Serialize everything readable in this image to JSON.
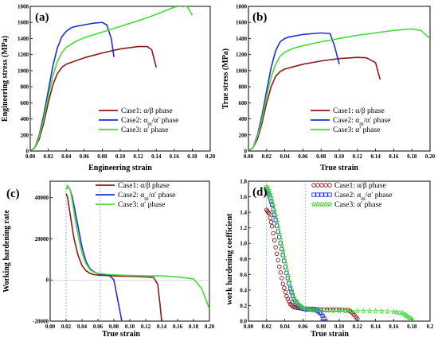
{
  "colors": {
    "case1": "#8B1A1A",
    "case2": "#1f2fd6",
    "case3": "#46d93a"
  },
  "legend_labels": [
    "Case1:  α/β  phase",
    "Case2:  αm/α′ phase",
    "Case3:    α′  phase"
  ],
  "chart_data": [
    {
      "panel": "(a)",
      "type": "line",
      "xlabel": "Engineering strain",
      "ylabel": "Engineering stress (MPa)",
      "xlim": [
        0,
        0.2
      ],
      "ylim": [
        0,
        1800
      ],
      "xticks": [
        "0.00",
        "0.02",
        "0.04",
        "0.06",
        "0.08",
        "0.10",
        "0.12",
        "0.14",
        "0.16",
        "0.18",
        "0.20"
      ],
      "yticks": [
        "0",
        "200",
        "400",
        "600",
        "800",
        "1000",
        "1200",
        "1400",
        "1600",
        "1800"
      ],
      "legend": "bottom-right",
      "series": [
        {
          "name": "Case1:  α/β  phase",
          "x": [
            0,
            0.005,
            0.01,
            0.015,
            0.02,
            0.025,
            0.03,
            0.035,
            0.04,
            0.05,
            0.06,
            0.08,
            0.1,
            0.12,
            0.13,
            0.135,
            0.14
          ],
          "y": [
            0,
            40,
            150,
            350,
            600,
            820,
            960,
            1040,
            1080,
            1120,
            1160,
            1220,
            1270,
            1300,
            1300,
            1260,
            1040
          ]
        },
        {
          "name": "Case2:  αm/α′ phase",
          "x": [
            0,
            0.005,
            0.01,
            0.015,
            0.02,
            0.025,
            0.03,
            0.035,
            0.04,
            0.045,
            0.05,
            0.06,
            0.07,
            0.08,
            0.085,
            0.09,
            0.093
          ],
          "y": [
            0,
            40,
            200,
            450,
            750,
            1050,
            1280,
            1420,
            1490,
            1530,
            1550,
            1570,
            1590,
            1600,
            1570,
            1400,
            1170
          ]
        },
        {
          "name": "Case3:    α′  phase",
          "x": [
            0,
            0.005,
            0.01,
            0.015,
            0.02,
            0.025,
            0.03,
            0.035,
            0.04,
            0.05,
            0.06,
            0.08,
            0.1,
            0.12,
            0.14,
            0.16,
            0.17,
            0.175,
            0.18
          ],
          "y": [
            0,
            40,
            180,
            400,
            680,
            930,
            1110,
            1220,
            1290,
            1360,
            1410,
            1480,
            1550,
            1620,
            1700,
            1790,
            1810,
            1790,
            1690
          ]
        }
      ]
    },
    {
      "panel": "(b)",
      "type": "line",
      "xlabel": "True strain",
      "ylabel": "True stress (MPa)",
      "xlim": [
        0,
        0.2
      ],
      "ylim": [
        0,
        1800
      ],
      "xticks": [
        "0.00",
        "0.02",
        "0.04",
        "0.06",
        "0.08",
        "0.10",
        "0.12",
        "0.14",
        "0.16",
        "0.18",
        "0.20"
      ],
      "yticks": [
        "0",
        "200",
        "400",
        "600",
        "800",
        "1000",
        "1200",
        "1400",
        "1600",
        "1800"
      ],
      "legend": "bottom-right",
      "series": [
        {
          "name": "Case1:  α/β  phase",
          "x": [
            0,
            0.005,
            0.01,
            0.015,
            0.02,
            0.025,
            0.03,
            0.035,
            0.04,
            0.05,
            0.06,
            0.08,
            0.1,
            0.12,
            0.13,
            0.14,
            0.145
          ],
          "y": [
            0,
            40,
            150,
            350,
            600,
            800,
            930,
            990,
            1020,
            1050,
            1080,
            1120,
            1150,
            1165,
            1160,
            1100,
            890
          ]
        },
        {
          "name": "Case2:  αm/α′ phase",
          "x": [
            0,
            0.005,
            0.01,
            0.015,
            0.02,
            0.025,
            0.03,
            0.035,
            0.04,
            0.045,
            0.05,
            0.06,
            0.07,
            0.08,
            0.09,
            0.095,
            0.1
          ],
          "y": [
            0,
            40,
            200,
            450,
            750,
            1040,
            1250,
            1360,
            1400,
            1420,
            1430,
            1450,
            1460,
            1470,
            1460,
            1300,
            1080
          ]
        },
        {
          "name": "Case3:    α′  phase",
          "x": [
            0,
            0.005,
            0.01,
            0.015,
            0.02,
            0.025,
            0.03,
            0.035,
            0.04,
            0.05,
            0.06,
            0.08,
            0.1,
            0.12,
            0.14,
            0.16,
            0.18,
            0.19,
            0.2
          ],
          "y": [
            0,
            40,
            180,
            400,
            680,
            920,
            1080,
            1180,
            1230,
            1280,
            1310,
            1360,
            1400,
            1440,
            1470,
            1500,
            1520,
            1500,
            1400
          ]
        }
      ]
    },
    {
      "panel": "(c)",
      "type": "line",
      "xlabel": "True strain",
      "ylabel": "Working hardening rate",
      "xlim": [
        0,
        0.2
      ],
      "ylim": [
        -20000,
        48000
      ],
      "xticks": [
        "0.00",
        "0.02",
        "0.04",
        "0.06",
        "0.08",
        "0.10",
        "0.12",
        "0.14",
        "0.16",
        "0.18",
        "0.20"
      ],
      "yticks": [
        "-20000",
        "0",
        "20000",
        "40000"
      ],
      "legend": "top-right",
      "series": [
        {
          "name": "Case1:  α/β  phase",
          "x": [
            0.02,
            0.022,
            0.025,
            0.03,
            0.035,
            0.04,
            0.045,
            0.05,
            0.055,
            0.06,
            0.07,
            0.08,
            0.1,
            0.12,
            0.13,
            0.135,
            0.138,
            0.14
          ],
          "y": [
            42000,
            40000,
            32000,
            20000,
            12000,
            7000,
            4500,
            3200,
            2600,
            2400,
            2200,
            2000,
            1800,
            1500,
            1200,
            -2000,
            -12000,
            -20000
          ]
        },
        {
          "name": "Case2:  αm/α′ phase",
          "x": [
            0.02,
            0.022,
            0.025,
            0.028,
            0.032,
            0.036,
            0.04,
            0.045,
            0.05,
            0.055,
            0.06,
            0.07,
            0.075,
            0.08,
            0.085,
            0.09
          ],
          "y": [
            44000,
            45500,
            44000,
            40000,
            32000,
            24000,
            16000,
            9000,
            5500,
            4000,
            3000,
            2500,
            2000,
            0,
            -10000,
            -20000
          ]
        },
        {
          "name": "Case3:    α′  phase",
          "x": [
            0.02,
            0.022,
            0.025,
            0.028,
            0.032,
            0.036,
            0.04,
            0.045,
            0.05,
            0.055,
            0.06,
            0.07,
            0.08,
            0.1,
            0.12,
            0.14,
            0.16,
            0.18,
            0.19,
            0.2
          ],
          "y": [
            44000,
            46000,
            44000,
            38000,
            28000,
            20000,
            13000,
            8000,
            5000,
            3800,
            3200,
            2800,
            2500,
            2200,
            2000,
            2000,
            1500,
            500,
            -4000,
            -14000
          ]
        }
      ],
      "reference_lines_x": [
        0.02,
        0.063
      ]
    },
    {
      "panel": "(d)",
      "type": "scatter",
      "xlabel": "True strain",
      "ylabel": "work hardening coefficient",
      "xlim": [
        0,
        0.2
      ],
      "ylim": [
        0,
        1.8
      ],
      "xticks": [
        "0.00",
        "0.02",
        "0.04",
        "0.06",
        "0.08",
        "0.10",
        "0.12",
        "0.14",
        "0.16",
        "0.18",
        "0.2"
      ],
      "yticks": [
        "0.0",
        "0.2",
        "0.4",
        "0.6",
        "0.8",
        "1.0",
        "1.2",
        "1.4",
        "1.6",
        "1.8"
      ],
      "legend": "top-right",
      "series": [
        {
          "name": "Case1:  α/β  phase",
          "marker": "circle",
          "x": [
            0.02,
            0.023,
            0.026,
            0.03,
            0.034,
            0.038,
            0.042,
            0.046,
            0.05,
            0.055,
            0.06,
            0.07,
            0.08,
            0.09,
            0.1,
            0.11,
            0.115,
            0.12
          ],
          "y": [
            1.43,
            1.38,
            1.22,
            0.95,
            0.7,
            0.48,
            0.32,
            0.22,
            0.18,
            0.17,
            0.16,
            0.16,
            0.15,
            0.15,
            0.15,
            0.14,
            0.1,
            0.03
          ]
        },
        {
          "name": "Case2:  αm/α′ phase",
          "marker": "square",
          "x": [
            0.02,
            0.023,
            0.026,
            0.03,
            0.034,
            0.038,
            0.042,
            0.046,
            0.05,
            0.055,
            0.06,
            0.065,
            0.07,
            0.075,
            0.08,
            0.085
          ],
          "y": [
            1.7,
            1.62,
            1.5,
            1.3,
            1.08,
            0.85,
            0.62,
            0.42,
            0.28,
            0.2,
            0.16,
            0.15,
            0.15,
            0.14,
            0.1,
            0.0
          ]
        },
        {
          "name": "Case3:    α′  phase",
          "marker": "star",
          "x": [
            0.02,
            0.023,
            0.026,
            0.03,
            0.034,
            0.038,
            0.042,
            0.046,
            0.05,
            0.055,
            0.06,
            0.07,
            0.08,
            0.1,
            0.12,
            0.14,
            0.16,
            0.17,
            0.175,
            0.18
          ],
          "y": [
            1.73,
            1.66,
            1.55,
            1.35,
            1.12,
            0.9,
            0.66,
            0.45,
            0.3,
            0.22,
            0.17,
            0.15,
            0.14,
            0.13,
            0.13,
            0.13,
            0.12,
            0.1,
            0.06,
            0.02
          ]
        }
      ],
      "reference_lines_x": [
        0.02,
        0.063
      ]
    }
  ]
}
